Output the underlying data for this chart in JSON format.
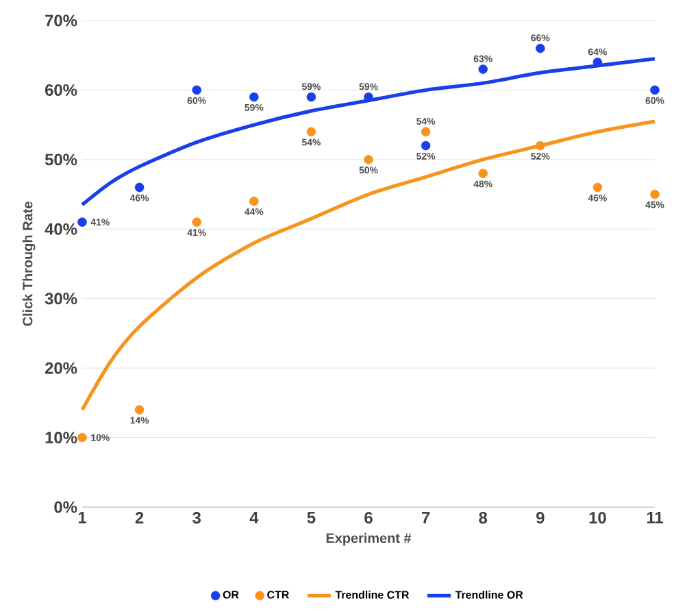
{
  "chart_data": {
    "type": "scatter",
    "xlabel": "Experiment #",
    "ylabel": "Click Through Rate",
    "x": [
      1,
      2,
      3,
      4,
      5,
      6,
      7,
      8,
      9,
      10,
      11
    ],
    "xlim": [
      1,
      11
    ],
    "xticks": [
      1,
      2,
      3,
      4,
      5,
      6,
      7,
      8,
      9,
      10,
      11
    ],
    "ylim": [
      0,
      70
    ],
    "yticks": [
      {
        "value": 0,
        "label": "0%"
      },
      {
        "value": 10,
        "label": "10%"
      },
      {
        "value": 20,
        "label": "20%"
      },
      {
        "value": 30,
        "label": "30%"
      },
      {
        "value": 40,
        "label": "40%"
      },
      {
        "value": 50,
        "label": "50%"
      },
      {
        "value": 60,
        "label": "60%"
      },
      {
        "value": 70,
        "label": "70%"
      }
    ],
    "grid": "y",
    "legend": "bottom",
    "series": [
      {
        "name": "OR",
        "marker": "circle",
        "color": "#1a3ee8",
        "values": [
          41,
          46,
          60,
          59,
          59,
          59,
          52,
          63,
          66,
          64,
          60
        ],
        "value_labels": [
          "41%",
          "46%",
          "60%",
          "59%",
          "59%",
          "59%",
          "52%",
          "63%",
          "66%",
          "64%",
          "60%"
        ]
      },
      {
        "name": "CTR",
        "marker": "circle",
        "color": "#f7941d",
        "values": [
          10,
          14,
          41,
          44,
          54,
          50,
          54,
          48,
          52,
          46,
          45
        ],
        "value_labels": [
          "10%",
          "14%",
          "41%",
          "44%",
          "54%",
          "50%",
          "54%",
          "48%",
          "52%",
          "46%",
          "45%"
        ]
      },
      {
        "name": "Trendline CTR",
        "type": "line",
        "color": "#f7941d",
        "x": [
          1,
          1.5,
          2,
          3,
          4,
          5,
          6,
          7,
          8,
          9,
          10,
          11
        ],
        "values": [
          14,
          21,
          26,
          33,
          38,
          41.5,
          45,
          47.5,
          50,
          52,
          54,
          55.5
        ]
      },
      {
        "name": "Trendline OR",
        "type": "line",
        "color": "#1a3ee8",
        "x": [
          1,
          1.5,
          2,
          3,
          4,
          5,
          6,
          7,
          8,
          9,
          10,
          11
        ],
        "values": [
          43.5,
          46.7,
          49,
          52.5,
          55,
          57,
          58.5,
          60,
          61,
          62.5,
          63.5,
          64.5
        ]
      }
    ]
  }
}
